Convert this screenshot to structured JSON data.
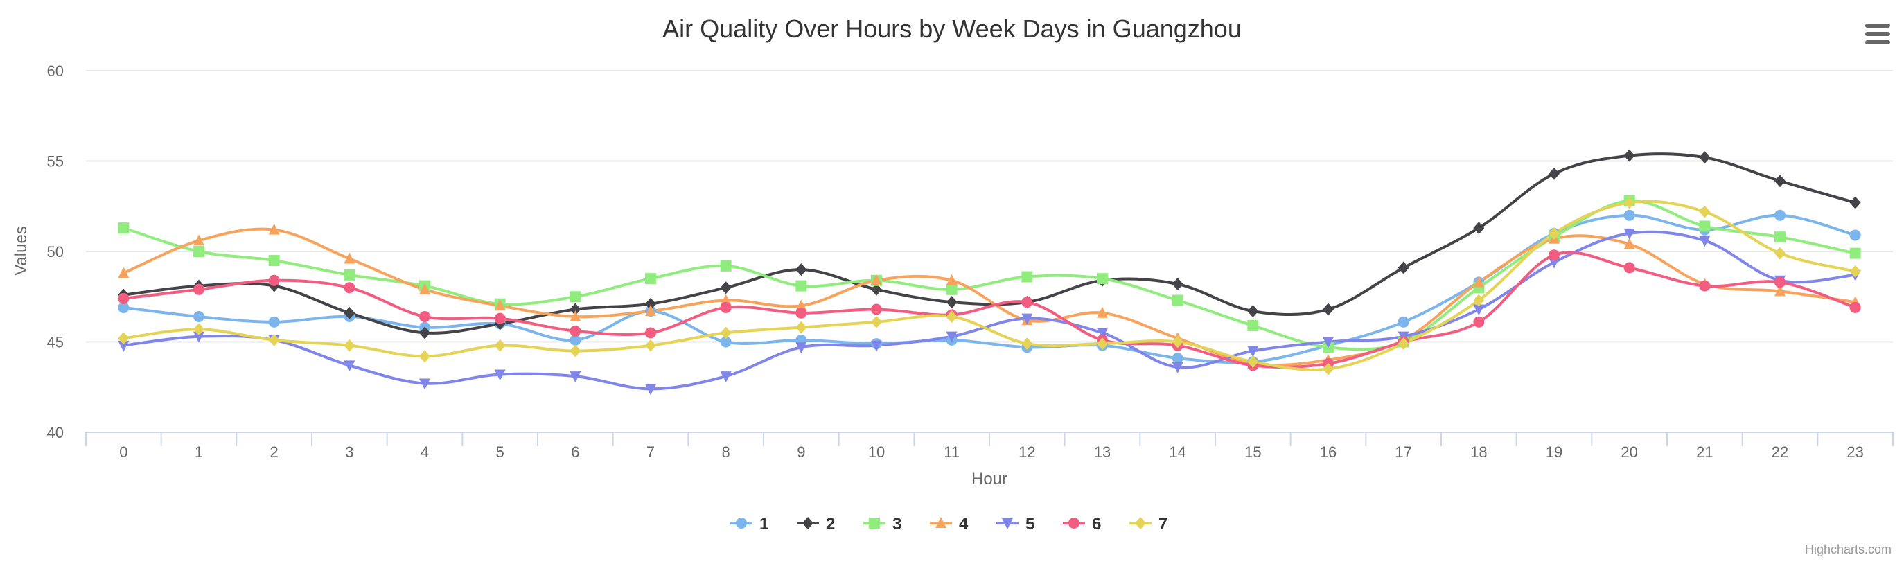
{
  "chart": {
    "title": "Air Quality Over Hours by Week Days in Guangzhou",
    "credits": "Highcharts.com",
    "menu_icon": "hamburger-menu-icon"
  },
  "chart_data": {
    "type": "line",
    "title": "Air Quality Over Hours by Week Days in Guangzhou",
    "xlabel": "Hour",
    "ylabel": "Values",
    "x": [
      0,
      1,
      2,
      3,
      4,
      5,
      6,
      7,
      8,
      9,
      10,
      11,
      12,
      13,
      14,
      15,
      16,
      17,
      18,
      19,
      20,
      21,
      22,
      23
    ],
    "ylim": [
      40,
      60
    ],
    "yticks": [
      40,
      45,
      50,
      55,
      60
    ],
    "grid": true,
    "legend_position": "bottom-center",
    "smooth": true,
    "series": [
      {
        "name": "1",
        "color": "#7cb5ec",
        "marker": "circle",
        "values": [
          46.9,
          46.4,
          46.1,
          46.4,
          45.8,
          46.0,
          45.1,
          46.7,
          45.0,
          45.1,
          44.9,
          45.1,
          44.7,
          44.8,
          44.1,
          43.9,
          44.8,
          46.1,
          48.3,
          51.0,
          52.0,
          51.2,
          52.0,
          50.9
        ]
      },
      {
        "name": "2",
        "color": "#434348",
        "marker": "diamond",
        "values": [
          47.6,
          48.1,
          48.1,
          46.6,
          45.5,
          46.0,
          46.8,
          47.1,
          48.0,
          49.0,
          47.9,
          47.2,
          47.2,
          48.4,
          48.2,
          46.7,
          46.8,
          49.1,
          51.3,
          54.3,
          55.3,
          55.2,
          53.9,
          52.7
        ]
      },
      {
        "name": "3",
        "color": "#90ed7d",
        "marker": "square",
        "values": [
          51.3,
          50.0,
          49.5,
          48.7,
          48.1,
          47.1,
          47.5,
          48.5,
          49.2,
          48.1,
          48.4,
          47.9,
          48.6,
          48.5,
          47.3,
          45.9,
          44.7,
          45.0,
          48.0,
          50.8,
          52.8,
          51.4,
          50.8,
          49.9
        ]
      },
      {
        "name": "4",
        "color": "#f7a35c",
        "marker": "triangle",
        "values": [
          48.8,
          50.6,
          51.2,
          49.6,
          47.9,
          47.0,
          46.4,
          46.7,
          47.3,
          47.0,
          48.4,
          48.4,
          46.2,
          46.6,
          45.2,
          43.8,
          44.0,
          45.1,
          48.3,
          50.7,
          50.4,
          48.2,
          47.8,
          47.2
        ]
      },
      {
        "name": "5",
        "color": "#8085e9",
        "marker": "triangle-down",
        "values": [
          44.8,
          45.3,
          45.1,
          43.7,
          42.7,
          43.2,
          43.1,
          42.4,
          43.1,
          44.7,
          44.8,
          45.3,
          46.3,
          45.5,
          43.6,
          44.5,
          45.0,
          45.3,
          46.8,
          49.4,
          51.0,
          50.6,
          48.4,
          48.7
        ]
      },
      {
        "name": "6",
        "color": "#f15c80",
        "marker": "circle",
        "values": [
          47.4,
          47.9,
          48.4,
          48.0,
          46.4,
          46.3,
          45.6,
          45.5,
          46.9,
          46.6,
          46.8,
          46.5,
          47.2,
          45.1,
          44.8,
          43.7,
          43.8,
          45.0,
          46.1,
          49.8,
          49.1,
          48.1,
          48.3,
          46.9
        ]
      },
      {
        "name": "7",
        "color": "#e4d354",
        "marker": "diamond",
        "values": [
          45.2,
          45.7,
          45.1,
          44.8,
          44.2,
          44.8,
          44.5,
          44.8,
          45.5,
          45.8,
          46.1,
          46.4,
          44.9,
          44.9,
          45.0,
          43.9,
          43.5,
          44.9,
          47.3,
          51.0,
          52.7,
          52.2,
          49.9,
          48.9
        ]
      }
    ]
  }
}
